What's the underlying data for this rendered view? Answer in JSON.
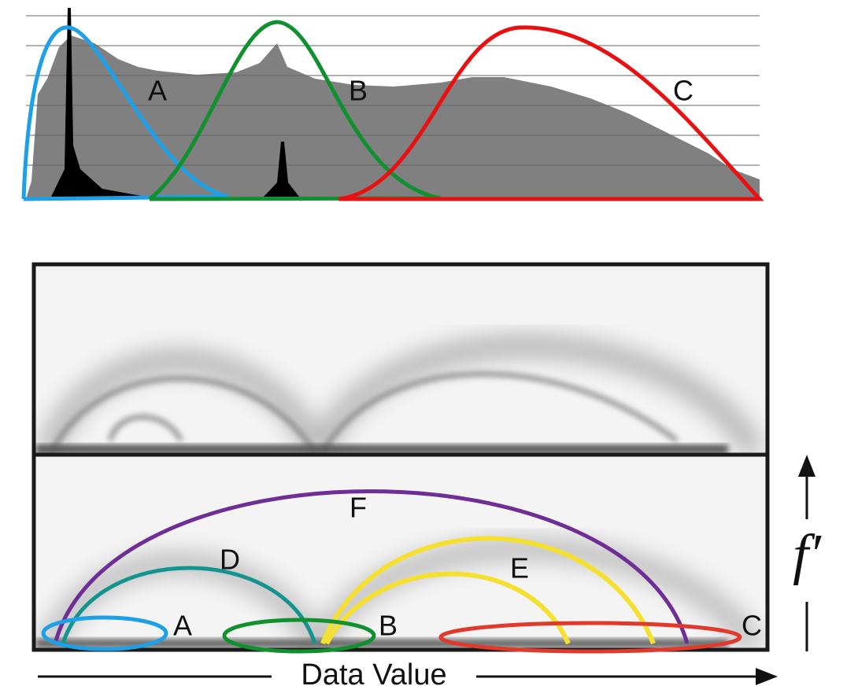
{
  "histogram": {
    "labels": [
      "A",
      "B",
      "C"
    ]
  },
  "plot": {
    "labels": [
      "A",
      "B",
      "C",
      "D",
      "E",
      "F"
    ],
    "x_axis_label": "Data Value",
    "y_axis_label": "f′"
  }
}
